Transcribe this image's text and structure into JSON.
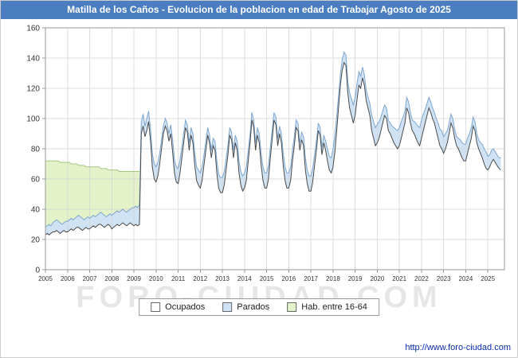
{
  "title": "Matilla de los Caños - Evolucion de la poblacion en edad de Trabajar Agosto de 2025",
  "watermark": "FORO-CIUDAD.COM",
  "footer": {
    "url": "http://www.foro-ciudad.com"
  },
  "colors": {
    "titlebar": "#4a7ec1",
    "grid": "#d3d3d3",
    "axis_border": "#999999",
    "ocupados_fill": "#ffffff",
    "ocupados_stroke": "#4a4a4a",
    "parados_fill": "#cfe3f5",
    "parados_stroke": "#7ea6cf",
    "hab_fill": "#e3f2c8",
    "hab_stroke": "#a4c77e"
  },
  "legend": [
    {
      "key": "ocupados",
      "label": "Ocupados",
      "fill": "#ffffff",
      "stroke": "#4a4a4a"
    },
    {
      "key": "parados",
      "label": "Parados",
      "fill": "#cfe3f5",
      "stroke": "#7ea6cf"
    },
    {
      "key": "hab_16_64",
      "label": "Hab. entre 16-64",
      "fill": "#e3f2c8",
      "stroke": "#a4c77e"
    }
  ],
  "chart_data": {
    "type": "area",
    "title": "Matilla de los Caños - Evolucion de la poblacion en edad de Trabajar Agosto de 2025",
    "xlabel": "",
    "ylabel": "",
    "grid": true,
    "legend_position": "bottom",
    "stacking": "Ocupados and Parados are stacked monthly series; Hab. entre 16-64 is the working-age population total, plotted only until early 2009",
    "x_axis": {
      "start_year": 2005,
      "axis_end": 2025.75,
      "months_total": 248,
      "last_month_label": "Agosto de 2025",
      "tick_years": [
        2005,
        2006,
        2007,
        2008,
        2009,
        2010,
        2011,
        2012,
        2013,
        2014,
        2015,
        2016,
        2017,
        2018,
        2019,
        2020,
        2021,
        2022,
        2023,
        2024,
        2025
      ]
    },
    "y_axis": {
      "min": 0,
      "max": 160,
      "ticks": [
        0,
        20,
        40,
        60,
        80,
        100,
        120,
        140,
        160
      ]
    },
    "series": [
      {
        "key": "ocupados",
        "name": "Ocupados",
        "values_by_year": [
          [
            23,
            24,
            23,
            24,
            25,
            25,
            26,
            25,
            24,
            25,
            26,
            25
          ],
          [
            25,
            26,
            27,
            26,
            27,
            28,
            28,
            27,
            26,
            27,
            28,
            27
          ],
          [
            27,
            28,
            29,
            28,
            29,
            30,
            30,
            29,
            28,
            29,
            30,
            29
          ],
          [
            27,
            28,
            29,
            30,
            29,
            30,
            31,
            30,
            29,
            30,
            31,
            30
          ],
          [
            29,
            30,
            29,
            30,
            90,
            95,
            88,
            92,
            98,
            85,
            68,
            60
          ],
          [
            58,
            62,
            70,
            80,
            90,
            95,
            92,
            85,
            90,
            78,
            64,
            58
          ],
          [
            57,
            64,
            74,
            84,
            94,
            91,
            79,
            89,
            84,
            69,
            59,
            56
          ],
          [
            54,
            59,
            69,
            79,
            89,
            84,
            74,
            82,
            79,
            64,
            54,
            51
          ],
          [
            51,
            56,
            66,
            76,
            89,
            86,
            74,
            84,
            79,
            64,
            56,
            52
          ],
          [
            54,
            59,
            72,
            84,
            99,
            94,
            79,
            89,
            84,
            69,
            59,
            54
          ],
          [
            54,
            60,
            74,
            86,
            99,
            96,
            82,
            90,
            84,
            69,
            59,
            54
          ],
          [
            54,
            59,
            72,
            82,
            94,
            92,
            79,
            86,
            82,
            66,
            57,
            52
          ],
          [
            52,
            58,
            69,
            79,
            92,
            89,
            76,
            84,
            79,
            72,
            66,
            64
          ],
          [
            68,
            78,
            92,
            107,
            122,
            132,
            137,
            135,
            117,
            107,
            102,
            97
          ],
          [
            102,
            112,
            122,
            120,
            127,
            122,
            112,
            107,
            102,
            92,
            87,
            82
          ],
          [
            84,
            87,
            92,
            97,
            102,
            100,
            92,
            90,
            87,
            84,
            82,
            80
          ],
          [
            82,
            87,
            92,
            97,
            107,
            104,
            97,
            92,
            90,
            87,
            84,
            82
          ],
          [
            87,
            92,
            97,
            102,
            107,
            104,
            100,
            97,
            92,
            87,
            82,
            80
          ],
          [
            77,
            80,
            84,
            90,
            97,
            94,
            87,
            82,
            80,
            77,
            74,
            72
          ],
          [
            72,
            77,
            82,
            87,
            95,
            92,
            84,
            80,
            77,
            74,
            70,
            67
          ],
          [
            66,
            68,
            71,
            73,
            71,
            69,
            67,
            66
          ]
        ]
      },
      {
        "key": "parados",
        "name": "Parados",
        "values_by_year": [
          [
            5,
            5,
            7,
            5,
            6,
            7,
            7,
            7,
            7,
            5,
            5,
            7
          ],
          [
            7,
            7,
            7,
            7,
            7,
            7,
            8,
            8,
            8,
            6,
            6,
            8
          ],
          [
            7,
            7,
            7,
            7,
            7,
            7,
            8,
            8,
            8,
            6,
            6,
            8
          ],
          [
            9,
            9,
            9,
            9,
            9,
            9,
            9,
            9,
            9,
            9,
            9,
            11
          ],
          [
            12,
            12,
            12,
            13,
            8,
            8,
            7,
            8,
            7,
            8,
            9,
            10
          ],
          [
            10,
            9,
            7,
            6,
            5,
            5,
            5,
            5,
            6,
            8,
            9,
            10
          ],
          [
            10,
            9,
            7,
            6,
            5,
            5,
            5,
            5,
            6,
            8,
            9,
            10
          ],
          [
            10,
            9,
            7,
            6,
            5,
            5,
            5,
            5,
            6,
            8,
            9,
            10
          ],
          [
            10,
            9,
            7,
            6,
            5,
            5,
            5,
            5,
            6,
            8,
            9,
            10
          ],
          [
            10,
            9,
            7,
            6,
            5,
            5,
            5,
            5,
            6,
            8,
            9,
            10
          ],
          [
            10,
            9,
            7,
            6,
            5,
            5,
            5,
            5,
            6,
            8,
            9,
            10
          ],
          [
            10,
            9,
            7,
            6,
            5,
            5,
            5,
            5,
            6,
            8,
            9,
            10
          ],
          [
            10,
            9,
            7,
            6,
            5,
            5,
            5,
            5,
            6,
            8,
            9,
            10
          ],
          [
            12,
            11,
            9,
            8,
            7,
            7,
            7,
            7,
            8,
            10,
            11,
            12
          ],
          [
            12,
            11,
            9,
            8,
            7,
            7,
            7,
            7,
            8,
            10,
            11,
            12
          ],
          [
            12,
            11,
            9,
            8,
            7,
            7,
            7,
            7,
            8,
            10,
            11,
            12
          ],
          [
            12,
            11,
            9,
            8,
            7,
            7,
            7,
            7,
            8,
            10,
            11,
            12
          ],
          [
            12,
            11,
            9,
            8,
            7,
            7,
            7,
            7,
            8,
            10,
            11,
            12
          ],
          [
            11,
            10,
            8,
            7,
            6,
            6,
            6,
            6,
            7,
            9,
            10,
            11
          ],
          [
            11,
            10,
            8,
            7,
            6,
            6,
            6,
            6,
            7,
            9,
            10,
            11
          ],
          [
            9,
            8,
            8,
            7,
            7,
            7,
            7,
            8
          ]
        ]
      },
      {
        "key": "hab_16_64",
        "name": "Hab. entre 16-64",
        "values_by_year": [
          [
            72,
            72,
            72,
            72,
            72,
            72,
            72,
            72,
            71,
            71,
            71,
            71
          ],
          [
            71,
            71,
            70,
            70,
            70,
            70,
            69,
            69,
            69,
            69,
            68,
            68
          ],
          [
            68,
            68,
            68,
            68,
            68,
            68,
            67,
            67,
            67,
            67,
            66,
            66
          ],
          [
            66,
            66,
            66,
            66,
            65,
            65,
            65,
            65,
            65,
            65,
            65,
            65
          ],
          [
            65,
            65,
            65,
            65
          ]
        ]
      }
    ]
  }
}
